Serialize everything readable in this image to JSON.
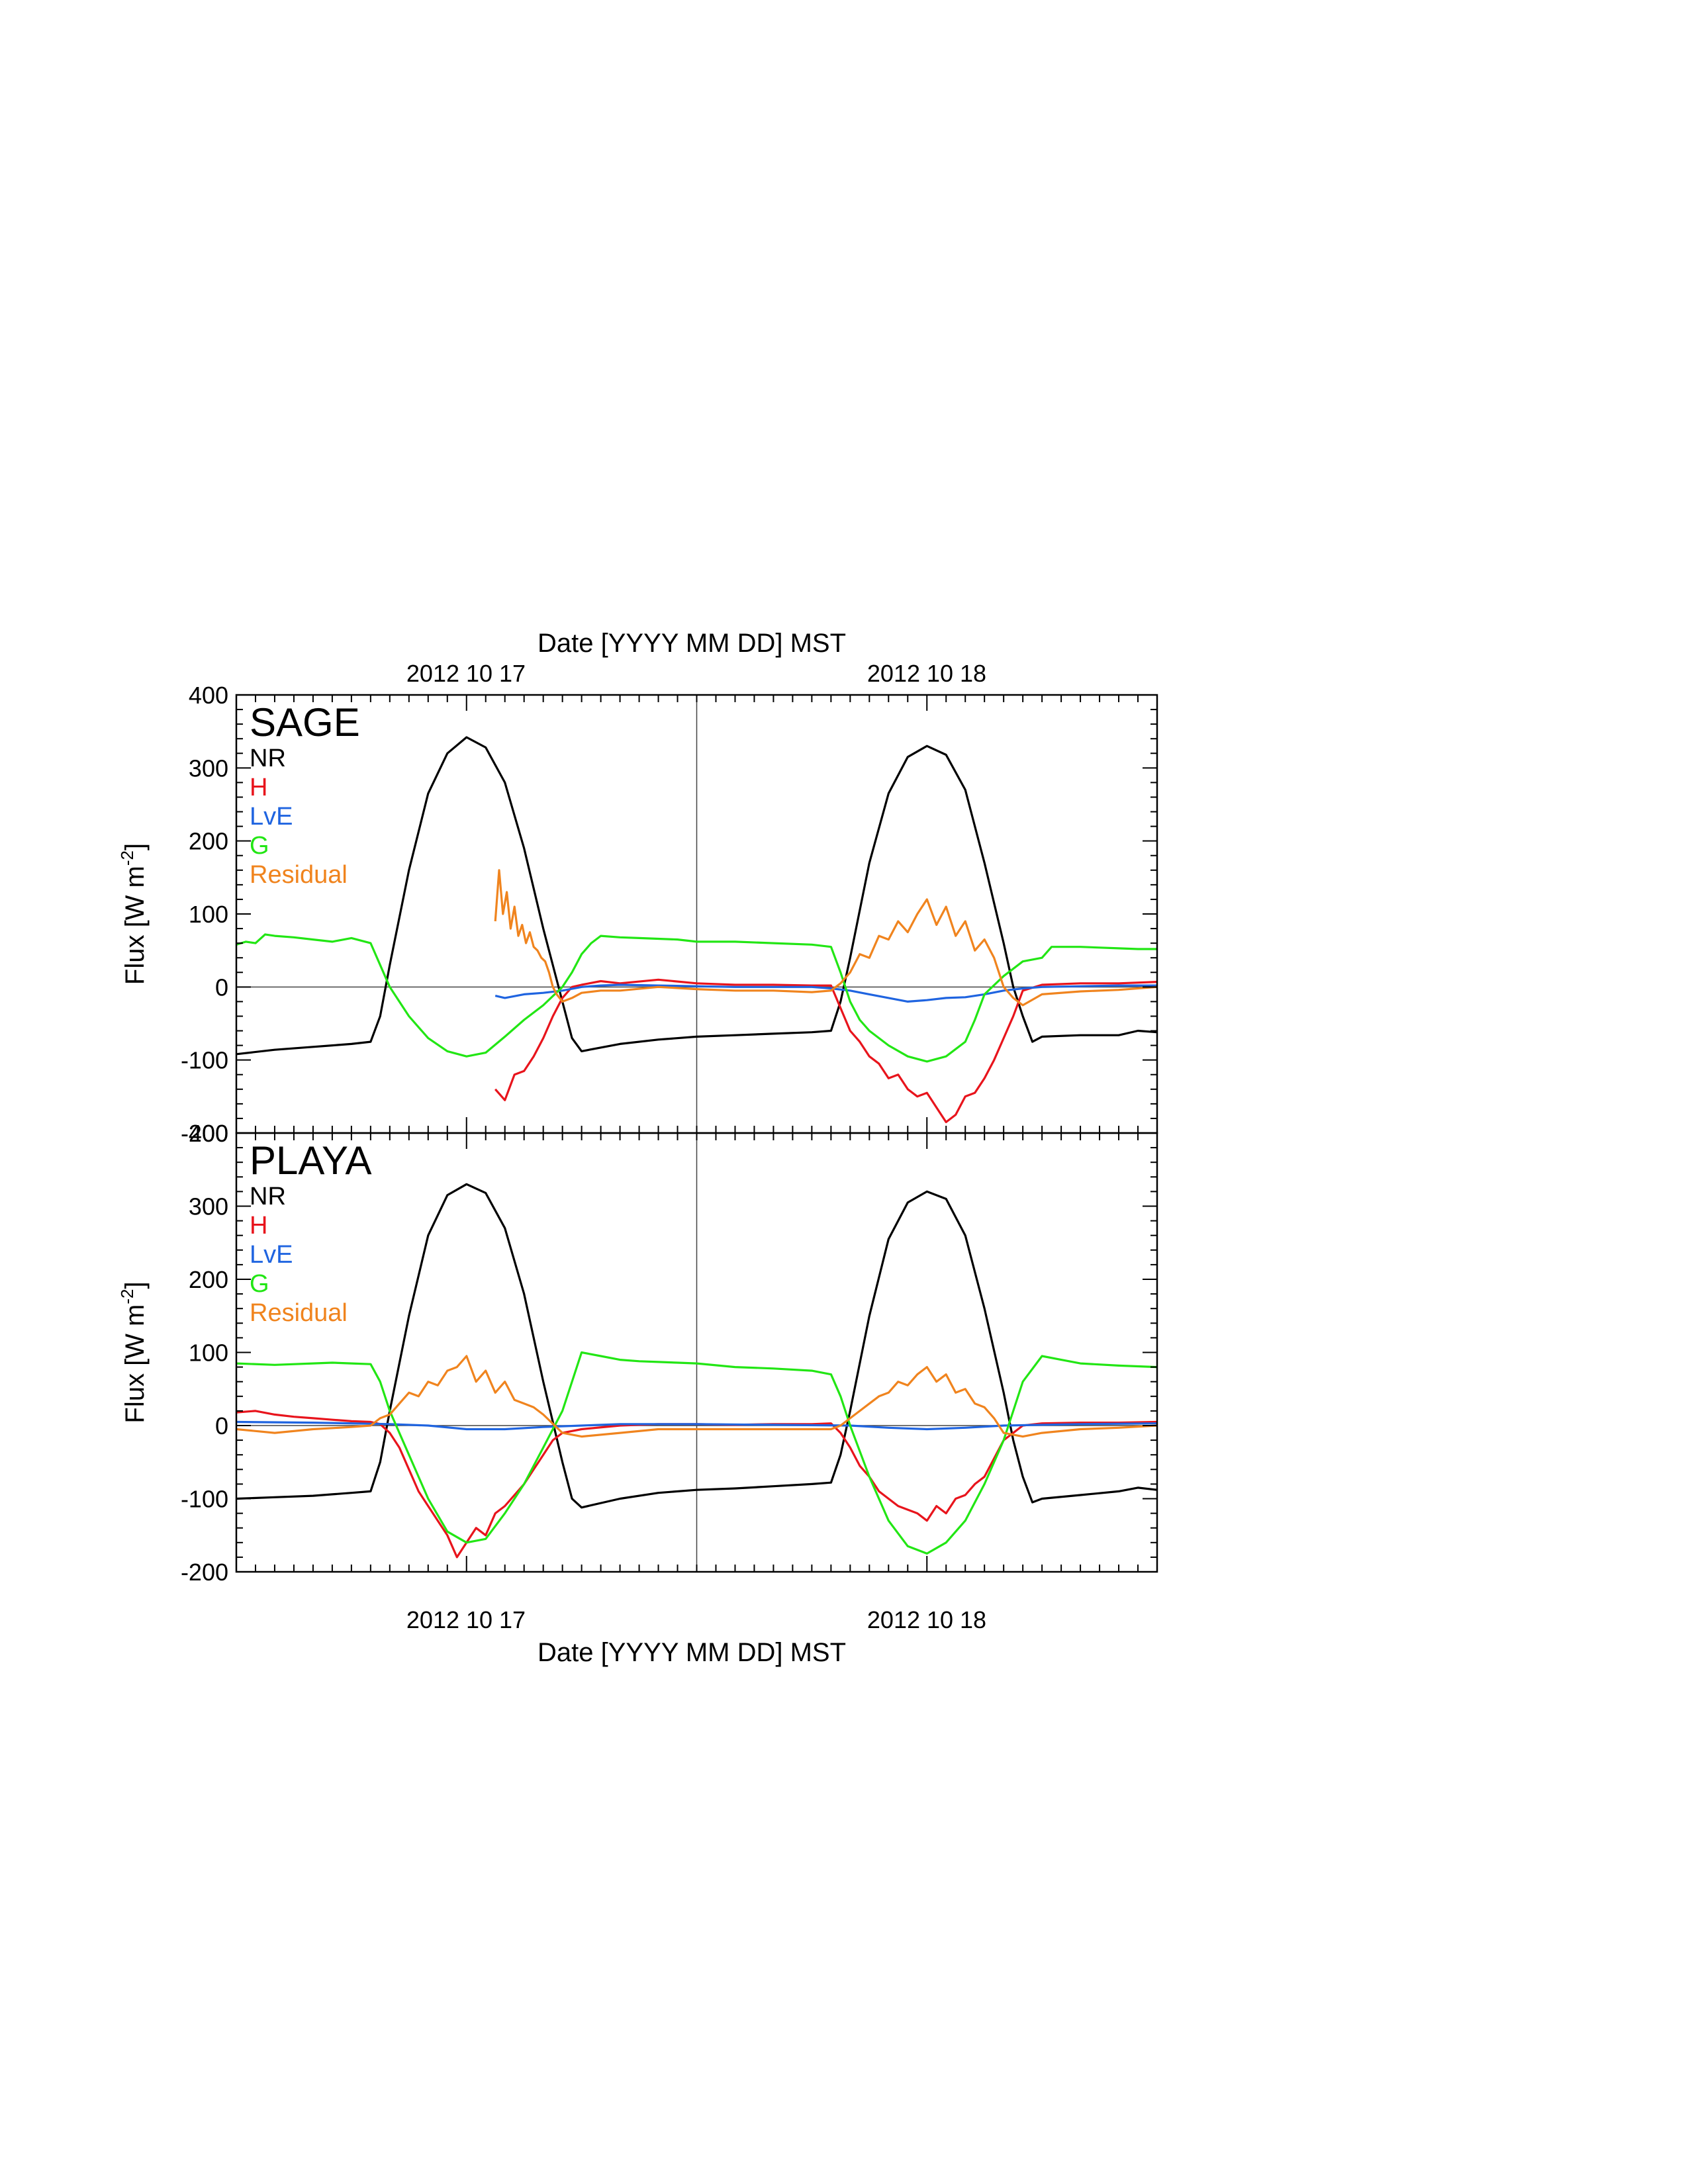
{
  "figure": {
    "top_axis_title": "Date [YYYY MM DD] MST",
    "bottom_axis_title": "Date [YYYY MM DD] MST",
    "date_labels": [
      "2012 10 17",
      "2012 10 18"
    ]
  },
  "colors": {
    "NR": "#000000",
    "H": "#e8141c",
    "LvE": "#1f64e0",
    "G": "#22e614",
    "Residual": "#f0841e"
  },
  "chart_data": [
    {
      "type": "line",
      "title": "SAGE",
      "xlabel": "Date [YYYY MM DD] MST",
      "ylabel": "Flux [W m-2]",
      "ylabel_main": "Flux [W m",
      "ylabel_sup": "-2",
      "ylabel_close": "]",
      "x_unit": "hours from 2012-10-16 12:00 MST",
      "xlim": [
        0,
        48
      ],
      "ylim": [
        -200,
        400
      ],
      "yticks": [
        -200,
        -100,
        0,
        100,
        200,
        300,
        400
      ],
      "xticks_labeled": [
        {
          "x": 12,
          "label": "2012 10 17"
        },
        {
          "x": 36,
          "label": "2012 10 18"
        }
      ],
      "legend": [
        "NR",
        "H",
        "LvE",
        "G",
        "Residual"
      ],
      "legend_position": "top-left",
      "series": [
        {
          "name": "NR",
          "x": [
            0,
            2,
            4,
            5,
            6,
            7,
            7.5,
            8,
            9,
            10,
            11,
            12,
            13,
            14,
            15,
            16,
            17,
            17.5,
            18,
            20,
            22,
            24,
            26,
            28,
            30,
            31,
            31.5,
            32,
            33,
            34,
            35,
            36,
            37,
            38,
            39,
            40,
            40.5,
            41,
            41.5,
            42,
            44,
            46,
            47,
            48
          ],
          "y": [
            -92,
            -86,
            -82,
            -80,
            -78,
            -75,
            -40,
            30,
            160,
            265,
            320,
            342,
            328,
            280,
            190,
            80,
            -20,
            -70,
            -88,
            -78,
            -72,
            -68,
            -66,
            -64,
            -62,
            -60,
            -20,
            40,
            170,
            265,
            315,
            330,
            318,
            270,
            170,
            60,
            0,
            -40,
            -75,
            -68,
            -66,
            -66,
            -60,
            -62
          ]
        },
        {
          "name": "H",
          "x": [
            13.5,
            14,
            14.5,
            15,
            15.5,
            16,
            16.5,
            17,
            17.5,
            18,
            19,
            20,
            22,
            24,
            26,
            28,
            30,
            31,
            32,
            32.5,
            33,
            33.5,
            34,
            34.5,
            35,
            35.5,
            36,
            36.5,
            37,
            37.5,
            38,
            38.5,
            39,
            39.5,
            40,
            40.5,
            41,
            42,
            44,
            46,
            48
          ],
          "y": [
            -140,
            -155,
            -120,
            -115,
            -95,
            -70,
            -40,
            -15,
            0,
            3,
            8,
            5,
            10,
            5,
            3,
            3,
            2,
            2,
            -60,
            -75,
            -95,
            -105,
            -125,
            -120,
            -140,
            -150,
            -145,
            -165,
            -185,
            -175,
            -150,
            -145,
            -125,
            -100,
            -70,
            -40,
            -5,
            3,
            5,
            5,
            7
          ]
        },
        {
          "name": "LvE",
          "x": [
            13.5,
            14,
            15,
            16,
            17,
            18,
            19,
            20,
            22,
            24,
            26,
            28,
            30,
            31,
            32,
            33,
            34,
            35,
            36,
            37,
            38,
            39,
            40,
            41,
            42,
            44,
            46,
            48
          ],
          "y": [
            -12,
            -15,
            -10,
            -8,
            -5,
            0,
            2,
            3,
            2,
            1,
            0,
            0,
            0,
            -2,
            -5,
            -10,
            -15,
            -20,
            -18,
            -15,
            -14,
            -10,
            -5,
            -2,
            0,
            1,
            2,
            2
          ]
        },
        {
          "name": "G",
          "x": [
            0,
            0.5,
            1,
            1.5,
            2,
            3,
            4,
            5,
            6,
            7,
            8,
            9,
            10,
            11,
            12,
            13,
            14,
            15,
            16,
            17,
            17.5,
            18,
            18.5,
            19,
            20,
            21,
            22,
            23,
            24,
            26,
            28,
            30,
            31,
            31.5,
            32,
            32.5,
            33,
            34,
            35,
            36,
            37,
            38,
            38.5,
            39,
            40,
            41,
            42,
            42.5,
            43,
            44,
            45,
            46,
            47,
            48
          ],
          "y": [
            58,
            62,
            60,
            72,
            70,
            68,
            65,
            62,
            67,
            60,
            0,
            -40,
            -70,
            -88,
            -95,
            -90,
            -68,
            -45,
            -25,
            0,
            20,
            45,
            60,
            70,
            68,
            67,
            66,
            65,
            62,
            62,
            60,
            58,
            55,
            20,
            -20,
            -45,
            -60,
            -80,
            -95,
            -102,
            -95,
            -75,
            -45,
            -10,
            15,
            35,
            40,
            55,
            55,
            55,
            54,
            53,
            52,
            52
          ]
        },
        {
          "name": "Residual",
          "x": [
            13.5,
            13.7,
            13.9,
            14.1,
            14.3,
            14.5,
            14.7,
            14.9,
            15.1,
            15.3,
            15.5,
            15.7,
            15.9,
            16.1,
            16.3,
            16.5,
            16.7,
            17,
            17.5,
            18,
            19,
            20,
            22,
            24,
            26,
            28,
            30,
            31,
            31.5,
            32,
            32.5,
            33,
            33.5,
            34,
            34.5,
            35,
            35.5,
            36,
            36.5,
            37,
            37.5,
            38,
            38.5,
            39,
            39.5,
            40,
            40.5,
            41,
            42,
            44,
            46,
            48
          ],
          "y": [
            90,
            160,
            100,
            130,
            80,
            110,
            70,
            85,
            60,
            75,
            55,
            50,
            40,
            35,
            20,
            0,
            -10,
            -20,
            -15,
            -8,
            -5,
            -5,
            0,
            -3,
            -5,
            -5,
            -7,
            -5,
            5,
            20,
            45,
            40,
            70,
            65,
            90,
            75,
            100,
            120,
            85,
            110,
            70,
            90,
            50,
            65,
            40,
            0,
            -15,
            -25,
            -10,
            -6,
            -4,
            0
          ]
        }
      ]
    },
    {
      "type": "line",
      "title": "PLAYA",
      "xlabel": "Date [YYYY MM DD] MST",
      "ylabel": "Flux [W m-2]",
      "ylabel_main": "Flux [W m",
      "ylabel_sup": "-2",
      "ylabel_close": "]",
      "x_unit": "hours from 2012-10-16 12:00 MST",
      "xlim": [
        0,
        48
      ],
      "ylim": [
        -200,
        400
      ],
      "yticks": [
        -200,
        -100,
        0,
        100,
        200,
        300,
        400
      ],
      "xticks_labeled": [
        {
          "x": 12,
          "label": "2012 10 17"
        },
        {
          "x": 36,
          "label": "2012 10 18"
        }
      ],
      "legend": [
        "NR",
        "H",
        "LvE",
        "G",
        "Residual"
      ],
      "legend_position": "top-left",
      "series": [
        {
          "name": "NR",
          "x": [
            0,
            2,
            4,
            5,
            6,
            7,
            7.5,
            8,
            9,
            10,
            11,
            12,
            13,
            14,
            15,
            16,
            17,
            17.5,
            18,
            20,
            22,
            24,
            26,
            28,
            30,
            31,
            31.5,
            32,
            33,
            34,
            35,
            36,
            37,
            38,
            39,
            40,
            40.5,
            41,
            41.5,
            42,
            44,
            46,
            47,
            48
          ],
          "y": [
            -100,
            -98,
            -96,
            -94,
            -92,
            -90,
            -50,
            20,
            150,
            260,
            315,
            330,
            318,
            270,
            180,
            60,
            -50,
            -100,
            -112,
            -100,
            -92,
            -88,
            -86,
            -83,
            -80,
            -78,
            -40,
            20,
            150,
            255,
            305,
            320,
            310,
            260,
            160,
            45,
            -20,
            -70,
            -105,
            -100,
            -95,
            -90,
            -85,
            -88
          ]
        },
        {
          "name": "H",
          "x": [
            0,
            1,
            2,
            3,
            4,
            5,
            6,
            7,
            7.5,
            8,
            8.5,
            9,
            9.5,
            10,
            10.5,
            11,
            11.5,
            12,
            12.5,
            13,
            13.5,
            14,
            14.5,
            15,
            15.5,
            16,
            16.5,
            17,
            18,
            20,
            22,
            24,
            26,
            28,
            30,
            31,
            31.5,
            32,
            32.5,
            33,
            33.5,
            34,
            34.5,
            35,
            35.5,
            36,
            36.5,
            37,
            37.5,
            38,
            38.5,
            39,
            39.5,
            40,
            41,
            42,
            44,
            46,
            48
          ],
          "y": [
            18,
            20,
            15,
            12,
            10,
            8,
            6,
            5,
            2,
            -10,
            -30,
            -60,
            -90,
            -110,
            -130,
            -150,
            -180,
            -160,
            -140,
            -150,
            -120,
            -110,
            -95,
            -80,
            -60,
            -40,
            -20,
            -10,
            -5,
            0,
            2,
            2,
            1,
            2,
            2,
            3,
            -10,
            -30,
            -55,
            -70,
            -90,
            -100,
            -110,
            -115,
            -120,
            -130,
            -110,
            -120,
            -100,
            -95,
            -80,
            -70,
            -45,
            -20,
            0,
            3,
            4,
            4,
            5
          ]
        },
        {
          "name": "LvE",
          "x": [
            0,
            4,
            8,
            10,
            12,
            14,
            16,
            18,
            20,
            24,
            28,
            32,
            34,
            36,
            38,
            40,
            44,
            48
          ],
          "y": [
            5,
            4,
            2,
            0,
            -5,
            -5,
            -2,
            0,
            2,
            2,
            1,
            0,
            -3,
            -5,
            -3,
            0,
            2,
            3
          ]
        },
        {
          "name": "G",
          "x": [
            0,
            2,
            4,
            5,
            6,
            7,
            7.5,
            8,
            9,
            10,
            11,
            12,
            13,
            14,
            15,
            16,
            17,
            17.5,
            18,
            19,
            20,
            21,
            22,
            23,
            24,
            26,
            28,
            30,
            31,
            31.5,
            32,
            33,
            34,
            35,
            36,
            37,
            38,
            39,
            40,
            40.5,
            41,
            42,
            43,
            44,
            46,
            48
          ],
          "y": [
            85,
            83,
            85,
            86,
            85,
            84,
            60,
            20,
            -40,
            -100,
            -145,
            -160,
            -155,
            -120,
            -80,
            -30,
            20,
            60,
            100,
            95,
            90,
            88,
            87,
            86,
            85,
            80,
            78,
            75,
            70,
            40,
            0,
            -70,
            -130,
            -165,
            -175,
            -160,
            -130,
            -80,
            -20,
            20,
            60,
            95,
            90,
            85,
            82,
            80
          ]
        },
        {
          "name": "Residual",
          "x": [
            0,
            2,
            4,
            6,
            7,
            7.5,
            8,
            8.5,
            9,
            9.5,
            10,
            10.5,
            11,
            11.5,
            12,
            12.5,
            13,
            13.5,
            14,
            14.5,
            15,
            15.5,
            16,
            17,
            18,
            20,
            22,
            24,
            26,
            28,
            30,
            31,
            31.5,
            32,
            32.5,
            33,
            33.5,
            34,
            34.5,
            35,
            35.5,
            36,
            36.5,
            37,
            37.5,
            38,
            38.5,
            39,
            39.5,
            40,
            41,
            42,
            44,
            46,
            48
          ],
          "y": [
            -5,
            -10,
            -5,
            -2,
            0,
            10,
            15,
            30,
            45,
            40,
            60,
            55,
            75,
            80,
            95,
            60,
            75,
            45,
            60,
            35,
            30,
            25,
            15,
            -10,
            -15,
            -10,
            -5,
            -5,
            -5,
            -5,
            -5,
            -5,
            0,
            10,
            20,
            30,
            40,
            45,
            60,
            55,
            70,
            80,
            60,
            70,
            45,
            50,
            30,
            25,
            10,
            -10,
            -15,
            -10,
            -5,
            -3,
            0
          ]
        }
      ]
    }
  ]
}
